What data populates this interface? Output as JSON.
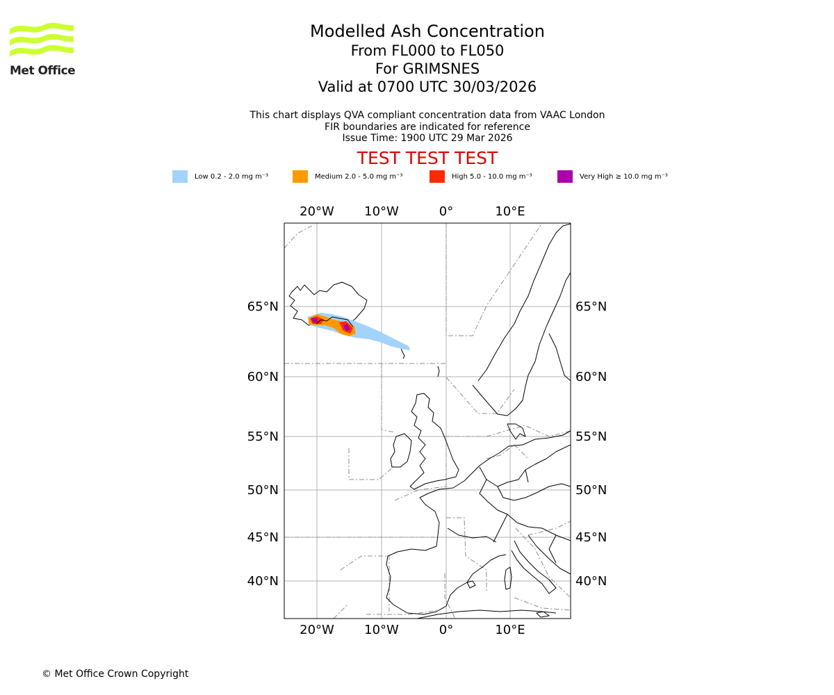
{
  "logo": {
    "wordmark": "Met Office",
    "wave_color": "#ccff33"
  },
  "header": {
    "title": "Modelled Ash Concentration",
    "levels": "From FL000 to FL050",
    "volcano": "For GRIMSNES",
    "valid": "Valid at 0700 UTC 30/03/2026"
  },
  "info": {
    "line1": "This chart displays QVA compliant concentration data from VAAC London",
    "line2": "FIR boundaries are indicated for reference",
    "line3": "Issue Time: 1900 UTC 29 Mar 2026"
  },
  "test_banner": "TEST TEST TEST",
  "legend": [
    {
      "label": "Low 0.2 - 2.0 mg m⁻³",
      "color": "#a3d3fc"
    },
    {
      "label": "Medium 2.0 - 5.0 mg m⁻³",
      "color": "#ff9900"
    },
    {
      "label": "High 5.0 - 10.0 mg m⁻³",
      "color": "#ff2a00"
    },
    {
      "label": "Very High ≥ 10.0 mg m⁻³",
      "color": "#ab00ab"
    }
  ],
  "map": {
    "lon_ticks": [
      "20°W",
      "10°W",
      "0°",
      "10°E"
    ],
    "lat_ticks": [
      "65°N",
      "60°N",
      "55°N",
      "50°N",
      "45°N",
      "40°N"
    ]
  },
  "copyright": "© Met Office Crown Copyright"
}
